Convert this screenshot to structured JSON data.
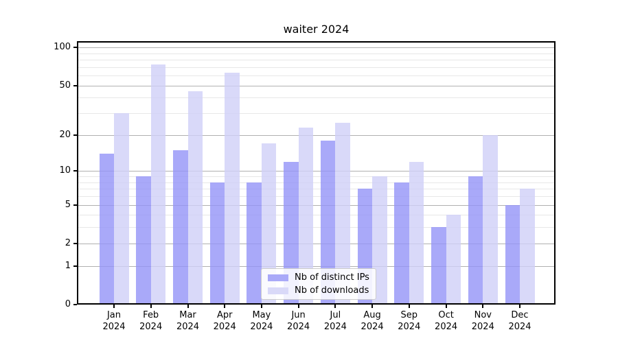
{
  "chart_data": {
    "type": "bar",
    "title": "waiter 2024",
    "categories": [
      "Jan 2024",
      "Feb 2024",
      "Mar 2024",
      "Apr 2024",
      "May 2024",
      "Jun 2024",
      "Jul 2024",
      "Aug 2024",
      "Sep 2024",
      "Oct 2024",
      "Nov 2024",
      "Dec 2024"
    ],
    "series": [
      {
        "name": "Nb of distinct IPs",
        "color": "#a9a9f8",
        "fill": "rgba(148,148,247,0.8)",
        "values": [
          14,
          9,
          15,
          8,
          8,
          12,
          18,
          7,
          8,
          3,
          9,
          5
        ]
      },
      {
        "name": "Nb of downloads",
        "color": "#d9d9f8",
        "fill": "rgba(208,208,247,0.8)",
        "values": [
          30,
          73,
          45,
          63,
          17,
          23,
          25,
          9,
          12,
          4,
          20,
          7
        ]
      }
    ],
    "xlabel": "",
    "ylabel": "",
    "yscale": "log1p",
    "ylim": [
      0,
      112
    ],
    "yticks": [
      0,
      1,
      2,
      5,
      10,
      20,
      50,
      100
    ],
    "yticks_minor": [
      3,
      4,
      6,
      7,
      8,
      9,
      30,
      40,
      60,
      70,
      80,
      90,
      110
    ],
    "grid": "both",
    "legend_position": "lower-center"
  },
  "colors": {
    "grid_major": "#b0b0b0",
    "grid_minor": "#e7e7e7",
    "spine": "#000000",
    "text": "#000000",
    "legend_border": "#cccccc"
  }
}
